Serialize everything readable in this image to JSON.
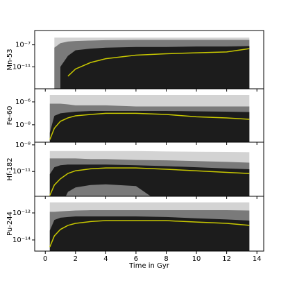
{
  "chart_data": {
    "type": "band",
    "xlabel": "Time in Gyr",
    "x": [
      0.3,
      0.6,
      1,
      1.5,
      2,
      3,
      4,
      6,
      8,
      10,
      12,
      13.5
    ],
    "xlim": [
      -0.7,
      14.45
    ],
    "xticks": [
      0,
      2,
      4,
      6,
      8,
      10,
      12,
      14
    ],
    "log_y": true,
    "panels": [
      {
        "ylabel": "Mn-53",
        "ylim": [
          1e-15,
          4e-05
        ],
        "yticks": [
          {
            "value": 1e-07,
            "label": "10⁻⁷"
          },
          {
            "value": 1e-11,
            "label": "10⁻¹¹"
          }
        ],
        "bands": [
          {
            "color": "#d3d3d3",
            "upper": [
              null,
              2e-06,
              2e-06,
              2e-06,
              2e-06,
              2e-06,
              2e-06,
              2e-06,
              2e-06,
              2e-06,
              2e-06,
              2e-06
            ],
            "lower": [
              null,
              1e-16,
              1e-16,
              1e-16,
              1e-16,
              1e-16,
              1e-16,
              1e-16,
              1e-16,
              1e-16,
              1e-16,
              1e-16
            ]
          },
          {
            "color": "#7a7a7a",
            "upper": [
              null,
              3e-08,
              2e-07,
              4e-07,
              5e-07,
              6e-07,
              7e-07,
              8e-07,
              8e-07,
              8e-07,
              8e-07,
              8e-07
            ],
            "lower": [
              null,
              1e-16,
              1e-16,
              1e-16,
              1e-16,
              1e-16,
              1e-16,
              1e-16,
              1e-16,
              1e-16,
              1e-16,
              1e-16
            ]
          },
          {
            "color": "#1c1c1c",
            "upper": [
              null,
              null,
              1e-11,
              1e-09,
              1e-08,
              2e-08,
              3e-08,
              4e-08,
              4e-08,
              5e-08,
              5e-08,
              6e-08
            ],
            "lower": [
              null,
              null,
              1e-16,
              1e-16,
              1e-16,
              1e-16,
              1e-16,
              1e-16,
              1e-16,
              1e-16,
              1e-16,
              1e-16
            ]
          }
        ],
        "median": {
          "color": "#c8c800",
          "values": [
            null,
            null,
            null,
            2e-13,
            4e-12,
            6e-11,
            3e-10,
            1.3e-09,
            2.4e-09,
            3.5e-09,
            5e-09,
            2e-08
          ]
        }
      },
      {
        "ylabel": "Fe-60",
        "ylim": [
          3e-10,
          1.4e-05
        ],
        "yticks": [
          {
            "value": 1e-06,
            "label": "10⁻⁶"
          },
          {
            "value": 1e-08,
            "label": "10⁻⁸"
          }
        ],
        "bands": [
          {
            "color": "#d3d3d3",
            "upper": [
              4e-06,
              4e-06,
              4e-06,
              4e-06,
              4e-06,
              4e-06,
              4e-06,
              4e-06,
              4e-06,
              4e-06,
              4e-06,
              4e-06
            ],
            "lower": [
              1e-10,
              1e-10,
              1e-10,
              1e-10,
              1e-10,
              1e-10,
              1e-10,
              1e-10,
              1e-10,
              1e-10,
              1e-10,
              1e-10
            ]
          },
          {
            "color": "#7a7a7a",
            "upper": [
              7e-07,
              7e-07,
              7e-07,
              6e-07,
              5e-07,
              5e-07,
              5e-07,
              4e-07,
              4e-07,
              4e-07,
              4e-07,
              4e-07
            ],
            "lower": [
              1e-10,
              1e-10,
              1e-10,
              1e-10,
              1e-10,
              1e-10,
              1e-10,
              1e-10,
              1e-10,
              1e-10,
              1e-10,
              1e-10
            ]
          },
          {
            "color": "#1c1c1c",
            "upper": [
              2e-09,
              6e-08,
              1e-07,
              1.2e-07,
              1.4e-07,
              1.6e-07,
              1.6e-07,
              1.6e-07,
              1.6e-07,
              1.5e-07,
              1.4e-07,
              1.3e-07
            ],
            "lower": [
              1e-10,
              1e-10,
              1e-10,
              1e-10,
              1e-10,
              1e-10,
              1e-10,
              1e-10,
              1e-10,
              1e-10,
              1e-10,
              1e-10
            ]
          }
        ],
        "median": {
          "color": "#c8c800",
          "values": [
            5e-10,
            5e-09,
            2e-08,
            4e-08,
            6e-08,
            8e-08,
            1e-07,
            1e-07,
            8e-08,
            5e-08,
            4e-08,
            3e-08
          ]
        }
      },
      {
        "ylabel": "Hf-182",
        "ylim": [
          1.6e-14,
          2e-08
        ],
        "yticks": [
          {
            "value": 1e-08,
            "label": "10⁻⁸"
          },
          {
            "value": 1e-11,
            "label": "10⁻¹¹"
          }
        ],
        "bands": [
          {
            "color": "#d3d3d3",
            "upper": [
              2e-09,
              2e-09,
              2e-09,
              2e-09,
              2e-09,
              2e-09,
              2e-09,
              2e-09,
              1.8e-09,
              1.7e-09,
              1.6e-09,
              1.5e-09
            ],
            "lower": [
              1e-15,
              1e-15,
              1e-15,
              1e-15,
              1e-15,
              1e-15,
              1e-15,
              1e-15,
              1e-15,
              1e-15,
              1e-15,
              1e-15
            ]
          },
          {
            "color": "#7a7a7a",
            "upper": [
              3e-10,
              3e-10,
              3e-10,
              3e-10,
              3e-10,
              2.5e-10,
              2.5e-10,
              2e-10,
              1.8e-10,
              1.5e-10,
              1.2e-10,
              1e-10
            ],
            "lower": [
              1e-15,
              1e-15,
              1e-15,
              1e-15,
              1e-15,
              1e-15,
              1e-15,
              1e-15,
              1e-15,
              1e-15,
              1e-15,
              1e-15
            ]
          },
          {
            "color": "#1c1c1c",
            "upper": [
              5e-12,
              3e-11,
              5e-11,
              6e-11,
              6e-11,
              6e-11,
              6e-11,
              5e-11,
              4e-11,
              3e-11,
              2.2e-11,
              1.8e-11
            ],
            "lower": [
              1e-15,
              1e-15,
              1e-15,
              5e-14,
              1.6e-13,
              3e-13,
              3.6e-13,
              2.3e-13,
              1e-15,
              1e-15,
              1e-15,
              1e-15
            ]
          }
        ],
        "median": {
          "color": "#c8c800",
          "values": [
            2e-14,
            3e-13,
            1.5e-12,
            6e-12,
            1.2e-11,
            2e-11,
            2.5e-11,
            2.5e-11,
            1.8e-11,
            1.2e-11,
            8e-12,
            6e-12
          ]
        }
      },
      {
        "ylabel": "Pu-244",
        "ylim": [
          1.5e-15,
          1.7e-11
        ],
        "yticks": [
          {
            "value": 1e-12,
            "label": "10⁻¹²"
          },
          {
            "value": 1e-14,
            "label": "10⁻¹⁴"
          }
        ],
        "bands": [
          {
            "color": "#d3d3d3",
            "upper": [
              6e-12,
              6e-12,
              6e-12,
              6e-12,
              6e-12,
              6e-12,
              6e-12,
              6e-12,
              6e-12,
              6e-12,
              6e-12,
              6e-12
            ],
            "lower": [
              1e-16,
              1e-16,
              1e-16,
              1e-16,
              1e-16,
              1e-16,
              1e-16,
              1e-16,
              1e-16,
              1e-16,
              1e-16,
              1e-16
            ]
          },
          {
            "color": "#7a7a7a",
            "upper": [
              1.2e-12,
              1.2e-12,
              1.3e-12,
              1.4e-12,
              1.5e-12,
              1.6e-12,
              1.6e-12,
              1.6e-12,
              1.6e-12,
              1.6e-12,
              1.6e-12,
              1.5e-12
            ],
            "lower": [
              1e-16,
              1e-16,
              1e-16,
              1e-16,
              1e-16,
              1e-16,
              1e-16,
              1e-16,
              1e-16,
              1e-16,
              1e-16,
              1e-16
            ]
          },
          {
            "color": "#1c1c1c",
            "upper": [
              5e-14,
              3e-13,
              4.4e-13,
              5e-13,
              5.5e-13,
              5.5e-13,
              5.5e-13,
              5.5e-13,
              5e-13,
              4e-13,
              3.3e-13,
              2.7e-13
            ],
            "lower": [
              1e-16,
              1e-16,
              1e-16,
              1e-16,
              1e-16,
              1e-16,
              1e-16,
              1e-16,
              1e-16,
              1e-16,
              1e-16,
              1e-16
            ]
          }
        ],
        "median": {
          "color": "#c8c800",
          "values": [
            3e-15,
            2e-14,
            6e-14,
            1.2e-13,
            1.7e-13,
            2.3e-13,
            2.7e-13,
            2.7e-13,
            2.7e-13,
            2.1e-13,
            1.7e-13,
            1.2e-13
          ]
        }
      }
    ]
  }
}
